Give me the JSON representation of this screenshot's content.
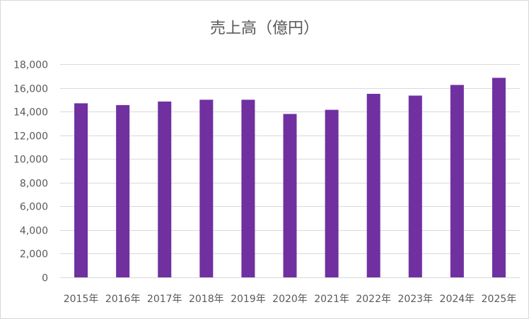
{
  "chart_data": {
    "type": "bar",
    "title": "売上高（億円）",
    "categories": [
      "2015年",
      "2016年",
      "2017年",
      "2018年",
      "2019年",
      "2020年",
      "2021年",
      "2022年",
      "2023年",
      "2024年",
      "2025年"
    ],
    "values": [
      14700,
      14550,
      14850,
      15000,
      15000,
      13800,
      14150,
      15500,
      15350,
      16250,
      16850
    ],
    "ylim": [
      0,
      18000
    ],
    "yticks": [
      0,
      2000,
      4000,
      6000,
      8000,
      10000,
      12000,
      14000,
      16000,
      18000
    ],
    "ytick_labels": [
      "0",
      "2,000",
      "4,000",
      "6,000",
      "8,000",
      "10,000",
      "12,000",
      "14,000",
      "16,000",
      "18,000"
    ],
    "grid": true,
    "bar_color": "#7030a0",
    "grid_color": "#d9d9d9"
  }
}
